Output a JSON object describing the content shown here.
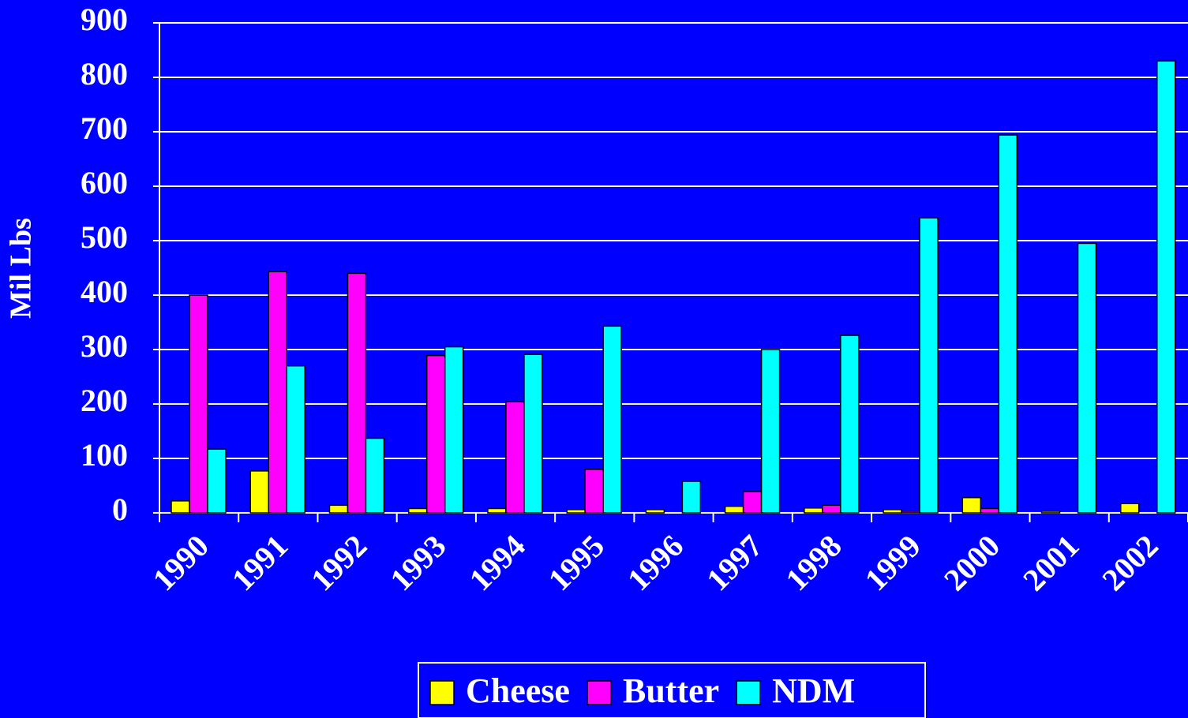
{
  "chart_data": {
    "type": "bar",
    "y_label": "Mil Lbs",
    "categories": [
      "1990",
      "1991",
      "1992",
      "1993",
      "1994",
      "1995",
      "1996",
      "1997",
      "1998",
      "1999",
      "2000",
      "2001",
      "2002"
    ],
    "series": [
      {
        "name": "Cheese",
        "color": "#ffff00",
        "values": [
          22,
          77,
          14,
          8,
          8,
          6,
          6,
          12,
          9,
          6,
          28,
          3,
          17
        ]
      },
      {
        "name": "Butter",
        "color": "#ff00ff",
        "values": [
          400,
          443,
          440,
          289,
          204,
          80,
          0,
          39,
          14,
          3,
          8,
          0,
          0
        ]
      },
      {
        "name": "NDM",
        "color": "#00ffff",
        "values": [
          117,
          270,
          137,
          305,
          291,
          343,
          58,
          300,
          326,
          542,
          694,
          495,
          830
        ]
      }
    ],
    "ylim": [
      0,
      900
    ],
    "yticks": [
      0,
      100,
      200,
      300,
      400,
      500,
      600,
      700,
      800,
      900
    ],
    "grid": true
  }
}
